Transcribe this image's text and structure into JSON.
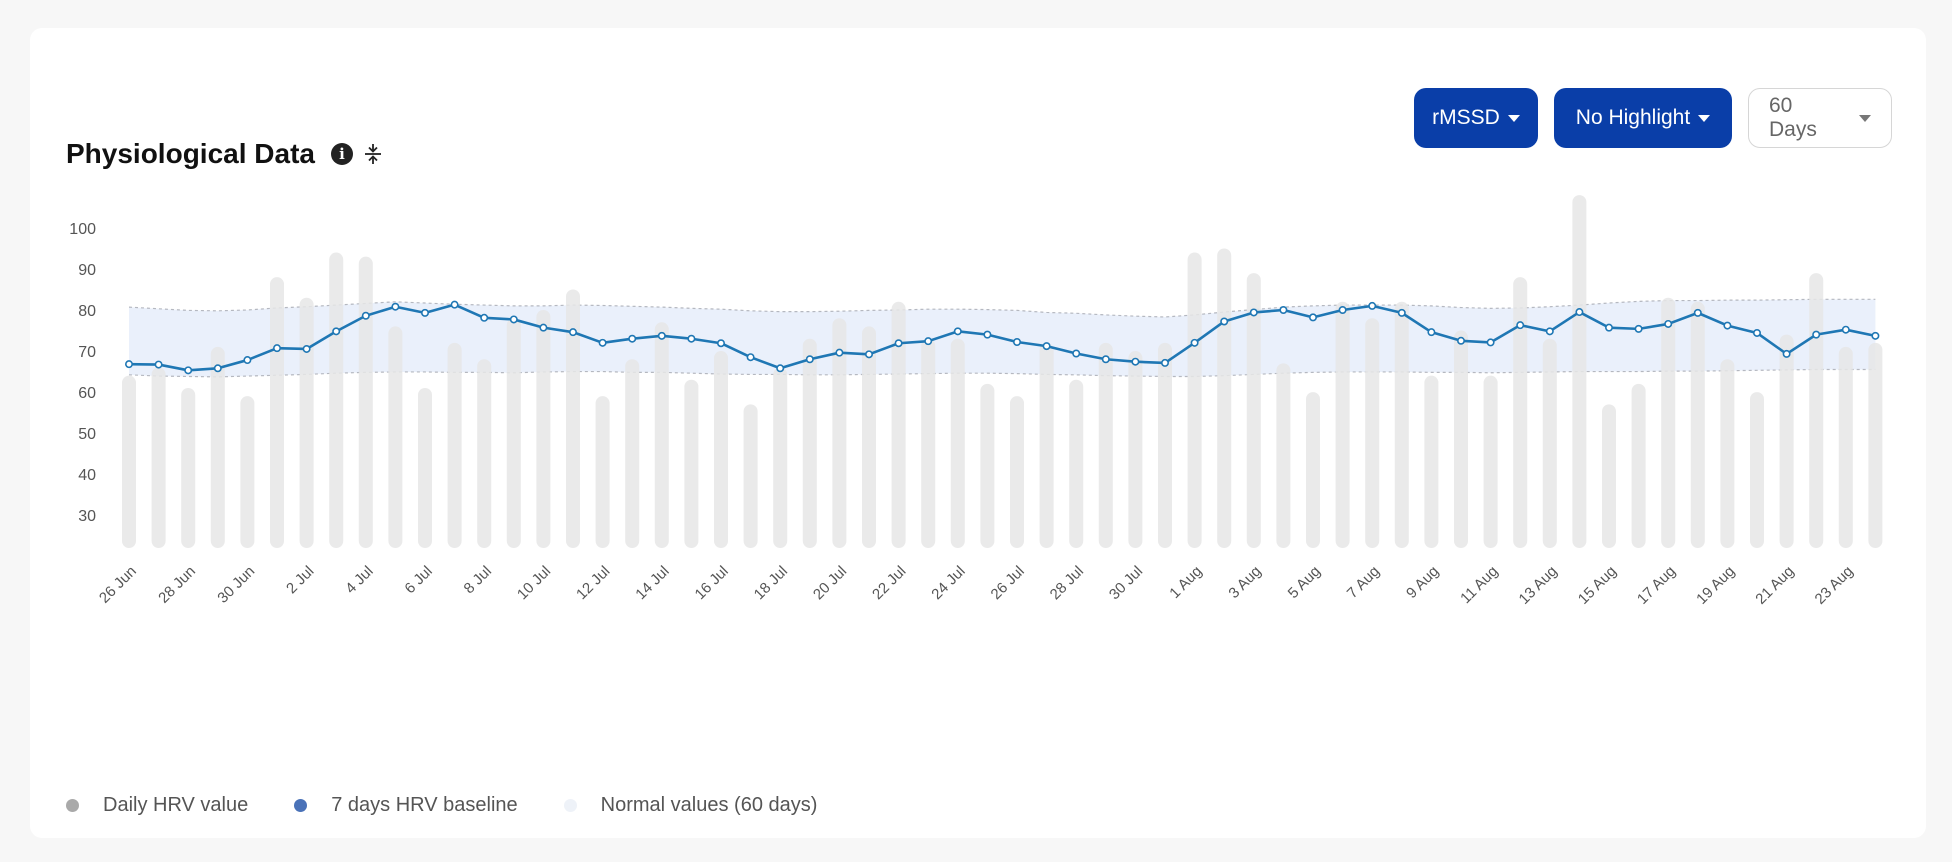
{
  "header": {
    "title": "Physiological Data",
    "info_icon": "info-icon",
    "collapse_icon": "collapse-vertical-icon"
  },
  "controls": {
    "metric_label": "rMSSD",
    "highlight_label": "No Highlight",
    "range_label": "60 Days"
  },
  "colors": {
    "accent": "#0a3ea8",
    "bar": "#e6e6e6",
    "line": "#1f77b4",
    "band": "#e8eefb",
    "legend_daily": "#a9a9a9",
    "legend_baseline": "#4a72b8",
    "legend_normal": "#eef2f8"
  },
  "legend": [
    {
      "label": "Daily HRV value",
      "icon": "dot"
    },
    {
      "label": "7 days HRV baseline",
      "icon": "dot"
    },
    {
      "label": "Normal values (60 days)",
      "icon": "dot"
    }
  ],
  "chart_data": {
    "type": "bar",
    "ylim": [
      22,
      109
    ],
    "yticks": [
      30,
      40,
      50,
      60,
      70,
      80,
      90,
      100
    ],
    "xtick_labels": [
      "26 Jun",
      "28 Jun",
      "30 Jun",
      "2 Jul",
      "4 Jul",
      "6 Jul",
      "8 Jul",
      "10 Jul",
      "12 Jul",
      "14 Jul",
      "16 Jul",
      "18 Jul",
      "20 Jul",
      "22 Jul",
      "24 Jul",
      "26 Jul",
      "28 Jul",
      "30 Jul",
      "1 Aug",
      "3 Aug",
      "5 Aug",
      "7 Aug",
      "9 Aug",
      "11 Aug",
      "13 Aug",
      "15 Aug",
      "17 Aug",
      "19 Aug",
      "21 Aug",
      "23 Aug"
    ],
    "series": [
      {
        "name": "Daily HRV value",
        "type": "bar",
        "values": [
          64,
          66,
          61,
          71,
          59,
          88,
          83,
          94,
          93,
          76,
          61,
          72,
          68,
          78,
          80,
          85,
          59,
          68,
          77,
          63,
          70,
          57,
          66,
          73,
          78,
          76,
          82,
          73,
          73,
          62,
          59,
          72,
          63,
          72,
          70,
          72,
          94,
          95,
          89,
          67,
          60,
          82,
          78,
          82,
          64,
          75,
          64,
          88,
          73,
          108,
          57,
          62,
          83,
          82,
          68,
          60,
          74,
          89,
          71,
          72
        ]
      },
      {
        "name": "7 days HRV baseline",
        "type": "line",
        "values": [
          66.8,
          66.7,
          65.3,
          65.8,
          67.8,
          70.7,
          70.5,
          74.8,
          78.6,
          80.8,
          79.3,
          81.3,
          78.1,
          77.7,
          75.7,
          74.6,
          72.0,
          73.0,
          73.7,
          73.0,
          71.9,
          68.5,
          65.8,
          68.0,
          69.6,
          69.2,
          71.9,
          72.4,
          74.8,
          74.0,
          72.2,
          71.2,
          69.4,
          68.0,
          67.4,
          67.1,
          72.0,
          77.2,
          79.4,
          80.0,
          78.2,
          80.0,
          81.0,
          79.3,
          74.6,
          72.5,
          72.1,
          76.3,
          74.8,
          79.5,
          75.7,
          75.4,
          76.6,
          79.3,
          76.2,
          74.4,
          69.3,
          74.0,
          75.2,
          73.7
        ]
      },
      {
        "name": "Normal values (60 days)",
        "type": "area-band",
        "upper": [
          80.7,
          80.3,
          79.9,
          79.8,
          80.0,
          80.5,
          80.8,
          81.2,
          81.6,
          82.0,
          81.7,
          81.4,
          81.2,
          81.0,
          81.0,
          81.2,
          81.1,
          80.9,
          80.7,
          80.4,
          80.2,
          79.8,
          79.6,
          79.6,
          79.7,
          79.9,
          80.0,
          80.2,
          80.2,
          80.1,
          79.9,
          79.4,
          79.2,
          78.8,
          78.5,
          78.3,
          78.8,
          79.5,
          80.1,
          80.7,
          81.0,
          81.2,
          81.2,
          81.2,
          81.0,
          80.6,
          80.4,
          80.5,
          80.8,
          81.2,
          81.7,
          82.1,
          82.3,
          82.3,
          82.4,
          82.4,
          82.5,
          82.6,
          82.6,
          82.6
        ],
        "lower": [
          64.2,
          63.9,
          63.8,
          63.7,
          63.9,
          64.1,
          64.3,
          64.6,
          64.8,
          64.9,
          64.9,
          64.8,
          64.8,
          64.7,
          64.9,
          65.0,
          65.0,
          64.8,
          64.8,
          64.6,
          64.4,
          64.3,
          64.3,
          64.2,
          64.2,
          64.3,
          64.4,
          64.5,
          64.6,
          64.6,
          64.5,
          64.3,
          64.2,
          64.0,
          63.9,
          63.8,
          63.8,
          64.0,
          64.3,
          64.6,
          64.8,
          64.9,
          64.9,
          64.9,
          64.8,
          64.8,
          64.7,
          64.8,
          64.9,
          65.0,
          65.0,
          65.0,
          65.1,
          65.1,
          65.2,
          65.3,
          65.4,
          65.5,
          65.5,
          65.5
        ]
      }
    ]
  }
}
